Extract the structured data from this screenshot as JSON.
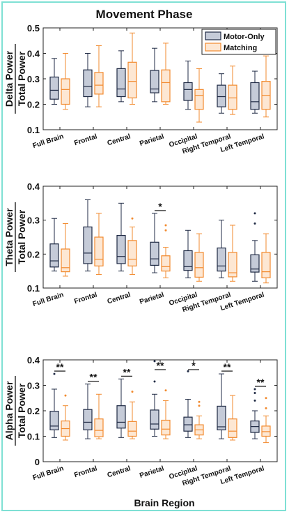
{
  "page": {
    "title": "Movement Phase",
    "xlabel": "Brain Region",
    "legend": [
      "Motor-Only",
      "Matching"
    ],
    "colors": {
      "motor_edge": "#1f2a44",
      "motor_fill": "#c5cbd8",
      "matching_edge": "#f28a2e",
      "matching_fill": "#fde7d3",
      "frame": "#7fe0d4"
    }
  },
  "chart_data": [
    {
      "type": "box",
      "ylabel_top": "Delta Power",
      "ylabel_bottom": "Total Power",
      "ylim": [
        0.1,
        0.5
      ],
      "yticks": [
        "0.1",
        "0.2",
        "0.3",
        "0.4",
        "0.5"
      ],
      "ytick_values": [
        0.1,
        0.2,
        0.3,
        0.4,
        0.5
      ],
      "categories": [
        "Full Brain",
        "Frontal",
        "Central",
        "Parietal",
        "Occipital",
        "Right Temporal",
        "Left Temporal"
      ],
      "legend_position": "top-right",
      "series": [
        {
          "name": "Motor-Only",
          "boxes": [
            {
              "whislo": 0.2,
              "q1": 0.22,
              "med": 0.255,
              "q3": 0.307,
              "whishi": 0.38,
              "outliers": []
            },
            {
              "whislo": 0.19,
              "q1": 0.23,
              "med": 0.27,
              "q3": 0.335,
              "whishi": 0.4,
              "outliers": []
            },
            {
              "whislo": 0.21,
              "q1": 0.23,
              "med": 0.26,
              "q3": 0.34,
              "whishi": 0.41,
              "outliers": []
            },
            {
              "whislo": 0.21,
              "q1": 0.245,
              "med": 0.26,
              "q3": 0.333,
              "whishi": 0.42,
              "outliers": []
            },
            {
              "whislo": 0.18,
              "q1": 0.215,
              "med": 0.258,
              "q3": 0.285,
              "whishi": 0.37,
              "outliers": []
            },
            {
              "whislo": 0.165,
              "q1": 0.19,
              "med": 0.23,
              "q3": 0.275,
              "whishi": 0.32,
              "outliers": []
            },
            {
              "whislo": 0.165,
              "q1": 0.18,
              "med": 0.21,
              "q3": 0.285,
              "whishi": 0.33,
              "outliers": []
            }
          ]
        },
        {
          "name": "Matching",
          "boxes": [
            {
              "whislo": 0.18,
              "q1": 0.2,
              "med": 0.258,
              "q3": 0.3,
              "whishi": 0.4,
              "outliers": []
            },
            {
              "whislo": 0.19,
              "q1": 0.24,
              "med": 0.275,
              "q3": 0.325,
              "whishi": 0.43,
              "outliers": []
            },
            {
              "whislo": 0.2,
              "q1": 0.225,
              "med": 0.29,
              "q3": 0.365,
              "whishi": 0.48,
              "outliers": []
            },
            {
              "whislo": 0.2,
              "q1": 0.21,
              "med": 0.285,
              "q3": 0.335,
              "whishi": 0.44,
              "outliers": []
            },
            {
              "whislo": 0.13,
              "q1": 0.18,
              "med": 0.235,
              "q3": 0.258,
              "whishi": 0.34,
              "outliers": []
            },
            {
              "whislo": 0.16,
              "q1": 0.18,
              "med": 0.225,
              "q3": 0.275,
              "whishi": 0.35,
              "outliers": []
            },
            {
              "whislo": 0.15,
              "q1": 0.18,
              "med": 0.235,
              "q3": 0.29,
              "whishi": 0.39,
              "outliers": []
            }
          ]
        }
      ],
      "significance": []
    },
    {
      "type": "box",
      "ylabel_top": "Theta Power",
      "ylabel_bottom": "Total Power",
      "ylim": [
        0.1,
        0.4
      ],
      "yticks": [
        "0.1",
        "0.2",
        "0.3",
        "0.4"
      ],
      "ytick_values": [
        0.1,
        0.2,
        0.3,
        0.4
      ],
      "categories": [
        "Full Brain",
        "Frontal",
        "Central",
        "Parietal",
        "Occipital",
        "Right Temporal",
        "Left Temporal"
      ],
      "series": [
        {
          "name": "Motor-Only",
          "boxes": [
            {
              "whislo": 0.15,
              "q1": 0.162,
              "med": 0.18,
              "q3": 0.23,
              "whishi": 0.305,
              "outliers": []
            },
            {
              "whislo": 0.15,
              "q1": 0.172,
              "med": 0.203,
              "q3": 0.28,
              "whishi": 0.36,
              "outliers": []
            },
            {
              "whislo": 0.15,
              "q1": 0.172,
              "med": 0.193,
              "q3": 0.255,
              "whishi": 0.35,
              "outliers": []
            },
            {
              "whislo": 0.145,
              "q1": 0.167,
              "med": 0.186,
              "q3": 0.235,
              "whishi": 0.32,
              "outliers": []
            },
            {
              "whislo": 0.13,
              "q1": 0.152,
              "med": 0.163,
              "q3": 0.21,
              "whishi": 0.27,
              "outliers": []
            },
            {
              "whislo": 0.13,
              "q1": 0.15,
              "med": 0.165,
              "q3": 0.218,
              "whishi": 0.3,
              "outliers": []
            },
            {
              "whislo": 0.12,
              "q1": 0.147,
              "med": 0.156,
              "q3": 0.198,
              "whishi": 0.24,
              "outliers": [
                0.29,
                0.32
              ]
            }
          ]
        },
        {
          "name": "Matching",
          "boxes": [
            {
              "whislo": 0.135,
              "q1": 0.148,
              "med": 0.16,
              "q3": 0.215,
              "whishi": 0.29,
              "outliers": []
            },
            {
              "whislo": 0.14,
              "q1": 0.165,
              "med": 0.185,
              "q3": 0.25,
              "whishi": 0.32,
              "outliers": []
            },
            {
              "whislo": 0.14,
              "q1": 0.165,
              "med": 0.185,
              "q3": 0.24,
              "whishi": 0.28,
              "outliers": [
                0.305
              ]
            },
            {
              "whislo": 0.13,
              "q1": 0.15,
              "med": 0.163,
              "q3": 0.195,
              "whishi": 0.22,
              "outliers": [
                0.27,
                0.285
              ]
            },
            {
              "whislo": 0.12,
              "q1": 0.132,
              "med": 0.16,
              "q3": 0.205,
              "whishi": 0.26,
              "outliers": []
            },
            {
              "whislo": 0.12,
              "q1": 0.133,
              "med": 0.145,
              "q3": 0.205,
              "whishi": 0.285,
              "outliers": []
            },
            {
              "whislo": 0.115,
              "q1": 0.13,
              "med": 0.148,
              "q3": 0.205,
              "whishi": 0.26,
              "outliers": []
            }
          ]
        }
      ],
      "significance": [
        {
          "category_index": 3,
          "label": "*"
        }
      ]
    },
    {
      "type": "box",
      "ylabel_top": "Alpha Power",
      "ylabel_bottom": "Total Power",
      "ylim": [
        0,
        0.4
      ],
      "yticks": [
        "0",
        "0.1",
        "0.2",
        "0.3",
        "0.4"
      ],
      "ytick_values": [
        0,
        0.1,
        0.2,
        0.3,
        0.4
      ],
      "categories": [
        "Full Brain",
        "Frontal",
        "Central",
        "Parietal",
        "Occipital",
        "Right Temporal",
        "Left Temporal"
      ],
      "series": [
        {
          "name": "Motor-Only",
          "boxes": [
            {
              "whislo": 0.095,
              "q1": 0.125,
              "med": 0.14,
              "q3": 0.198,
              "whishi": 0.285,
              "outliers": [
                0.345
              ]
            },
            {
              "whislo": 0.09,
              "q1": 0.125,
              "med": 0.155,
              "q3": 0.205,
              "whishi": 0.305,
              "outliers": []
            },
            {
              "whislo": 0.095,
              "q1": 0.132,
              "med": 0.155,
              "q3": 0.22,
              "whishi": 0.325,
              "outliers": []
            },
            {
              "whislo": 0.1,
              "q1": 0.128,
              "med": 0.148,
              "q3": 0.203,
              "whishi": 0.265,
              "outliers": [
                0.315,
                0.395
              ]
            },
            {
              "whislo": 0.095,
              "q1": 0.12,
              "med": 0.145,
              "q3": 0.175,
              "whishi": 0.245,
              "outliers": [
                0.355
              ]
            },
            {
              "whislo": 0.09,
              "q1": 0.125,
              "med": 0.137,
              "q3": 0.218,
              "whishi": 0.345,
              "outliers": []
            },
            {
              "whislo": 0.09,
              "q1": 0.115,
              "med": 0.138,
              "q3": 0.16,
              "whishi": 0.2,
              "outliers": [
                0.24,
                0.27,
                0.285
              ]
            }
          ]
        },
        {
          "name": "Matching",
          "boxes": [
            {
              "whislo": 0.085,
              "q1": 0.1,
              "med": 0.13,
              "q3": 0.16,
              "whishi": 0.22,
              "outliers": [
                0.26
              ]
            },
            {
              "whislo": 0.09,
              "q1": 0.098,
              "med": 0.123,
              "q3": 0.168,
              "whishi": 0.265,
              "outliers": []
            },
            {
              "whislo": 0.09,
              "q1": 0.1,
              "med": 0.12,
              "q3": 0.158,
              "whishi": 0.235,
              "outliers": [
                0.275
              ]
            },
            {
              "whislo": 0.09,
              "q1": 0.105,
              "med": 0.128,
              "q3": 0.163,
              "whishi": 0.24,
              "outliers": [
                0.28
              ]
            },
            {
              "whislo": 0.09,
              "q1": 0.105,
              "med": 0.125,
              "q3": 0.145,
              "whishi": 0.18,
              "outliers": [
                0.22,
                0.235
              ]
            },
            {
              "whislo": 0.085,
              "q1": 0.095,
              "med": 0.12,
              "q3": 0.168,
              "whishi": 0.26,
              "outliers": []
            },
            {
              "whislo": 0.075,
              "q1": 0.1,
              "med": 0.118,
              "q3": 0.14,
              "whishi": 0.18,
              "outliers": [
                0.21,
                0.25
              ]
            }
          ]
        }
      ],
      "significance": [
        {
          "category_index": 0,
          "label": "**"
        },
        {
          "category_index": 1,
          "label": "**"
        },
        {
          "category_index": 2,
          "label": "**"
        },
        {
          "category_index": 3,
          "label": "**"
        },
        {
          "category_index": 4,
          "label": "*"
        },
        {
          "category_index": 5,
          "label": "**"
        },
        {
          "category_index": 6,
          "label": "**"
        }
      ]
    }
  ]
}
